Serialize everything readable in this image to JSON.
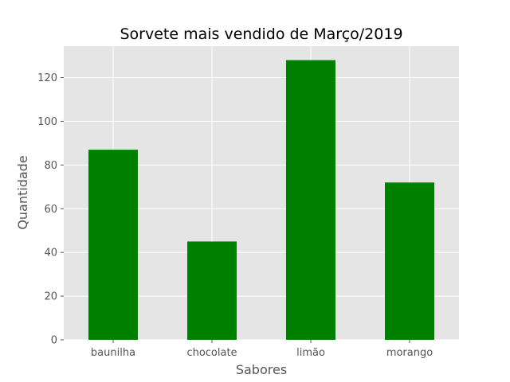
{
  "chart_data": {
    "type": "bar",
    "title": "Sorvete mais vendido de Março/2019",
    "xlabel": "Sabores",
    "ylabel": "Quantidade",
    "categories": [
      "baunilha",
      "chocolate",
      "limão",
      "morango"
    ],
    "values": [
      87,
      45,
      128,
      72
    ],
    "ylim": [
      0,
      134.4
    ],
    "yticks": [
      0,
      20,
      40,
      60,
      80,
      100,
      120
    ],
    "grid": true,
    "legend": "none",
    "colors": {
      "bar": "#008000",
      "plot_background": "#e5e5e5",
      "grid": "#ffffff",
      "tick_text": "#555555"
    }
  }
}
